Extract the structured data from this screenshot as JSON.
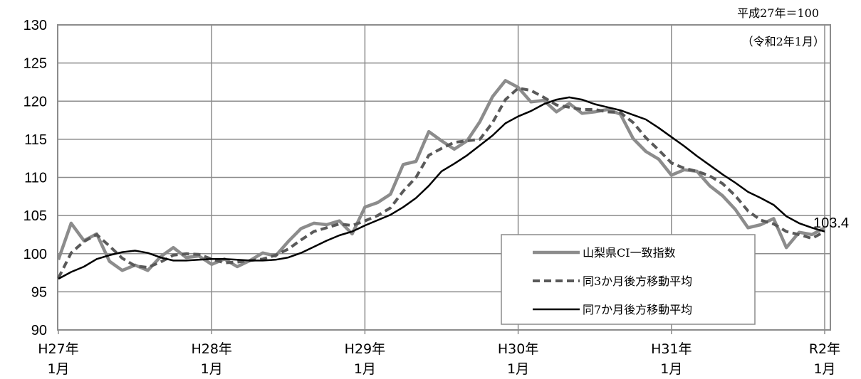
{
  "chart_data": {
    "type": "line",
    "unit_note": "平成27年＝100",
    "date_note": "（令和2年1月）",
    "ylim": [
      90,
      130
    ],
    "yticks": [
      90,
      95,
      100,
      105,
      110,
      115,
      120,
      125,
      130
    ],
    "x_tick_labels": [
      {
        "line1": "H27年",
        "line2": "1月"
      },
      {
        "line1": "H28年",
        "line2": "1月"
      },
      {
        "line1": "H29年",
        "line2": "1月"
      },
      {
        "line1": "H30年",
        "line2": "1月"
      },
      {
        "line1": "H31年",
        "line2": "1月"
      },
      {
        "line1": "R2年",
        "line2": "1月"
      }
    ],
    "last_value_label": "103.4",
    "grid": true,
    "legend_position": "bottom-right",
    "series": [
      {
        "name": "山梨県CI一致指数",
        "color": "#8c8c8c",
        "style": "solid-thick",
        "values": [
          99.2,
          104.0,
          101.7,
          102.6,
          99.0,
          97.8,
          98.5,
          97.8,
          99.6,
          100.8,
          99.5,
          99.7,
          98.6,
          99.3,
          98.3,
          99.1,
          100.1,
          99.7,
          101.6,
          103.3,
          104.0,
          103.8,
          104.3,
          102.6,
          106.1,
          106.7,
          107.8,
          111.7,
          112.1,
          116.0,
          114.8,
          113.7,
          114.8,
          117.3,
          120.6,
          122.7,
          121.8,
          119.9,
          120.1,
          118.6,
          119.7,
          118.4,
          118.6,
          118.9,
          118.3,
          115.1,
          113.4,
          112.4,
          110.3,
          111.0,
          110.8,
          108.9,
          107.6,
          105.8,
          103.4,
          103.8,
          104.6,
          100.8,
          102.8,
          102.5,
          103.4
        ]
      },
      {
        "name": "同3か月後方移動平均",
        "color": "#595959",
        "style": "dashed",
        "values": [
          96.8,
          100.1,
          101.6,
          102.5,
          101.0,
          99.4,
          98.4,
          98.2,
          98.9,
          99.8,
          100.0,
          99.9,
          99.3,
          98.8,
          98.9,
          99.1,
          99.3,
          99.8,
          100.6,
          101.8,
          102.9,
          103.4,
          103.9,
          103.7,
          104.3,
          105.0,
          106.0,
          108.2,
          110.0,
          112.9,
          113.8,
          114.6,
          114.8,
          115.0,
          117.2,
          120.2,
          121.7,
          121.4,
          120.5,
          119.5,
          119.2,
          118.9,
          118.9,
          118.6,
          118.5,
          117.2,
          115.2,
          113.6,
          111.9,
          111.2,
          110.8,
          110.2,
          109.2,
          107.6,
          105.6,
          104.4,
          103.9,
          102.9,
          102.5,
          102.0,
          102.9
        ]
      },
      {
        "name": "同7か月後方移動平均",
        "color": "#000000",
        "style": "solid",
        "values": [
          96.7,
          97.6,
          98.3,
          99.3,
          99.8,
          100.2,
          100.4,
          100.1,
          99.5,
          99.1,
          99.1,
          99.2,
          99.3,
          99.3,
          99.2,
          99.1,
          99.1,
          99.2,
          99.5,
          100.1,
          100.9,
          101.7,
          102.4,
          102.9,
          103.7,
          104.4,
          105.1,
          106.1,
          107.3,
          108.9,
          110.8,
          111.8,
          112.9,
          114.2,
          115.5,
          117.1,
          118.0,
          118.7,
          119.6,
          120.2,
          120.5,
          120.2,
          119.6,
          119.2,
          118.8,
          118.2,
          117.6,
          116.5,
          115.3,
          114.1,
          112.8,
          111.6,
          110.4,
          109.3,
          108.1,
          107.3,
          106.4,
          104.9,
          104.0,
          103.4,
          102.9
        ]
      }
    ]
  }
}
